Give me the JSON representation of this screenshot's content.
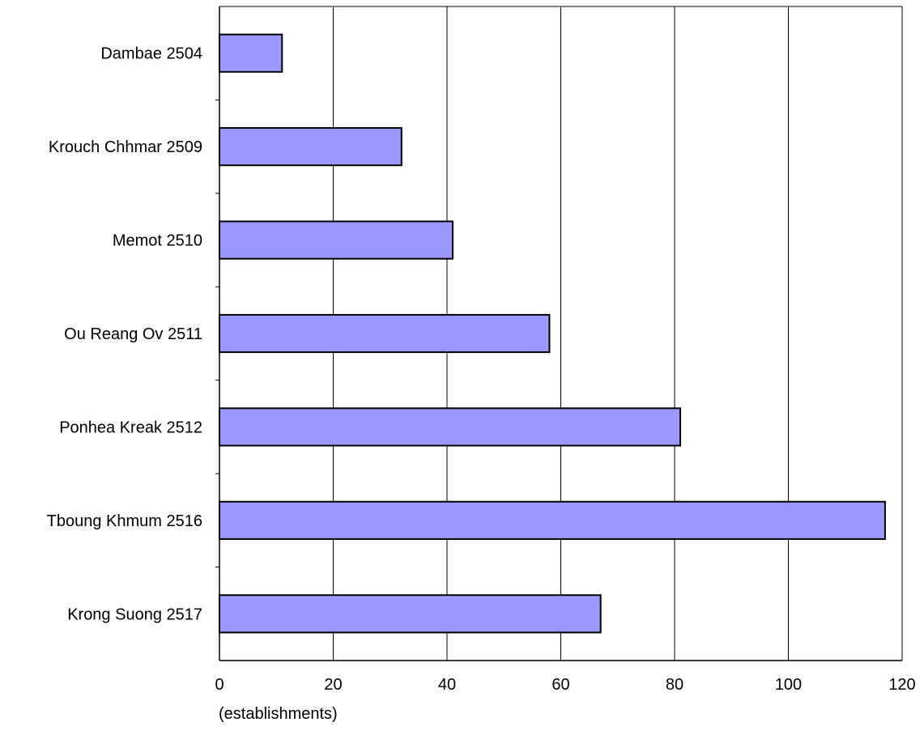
{
  "chart_data": {
    "type": "bar",
    "orientation": "horizontal",
    "categories": [
      "Dambae 2504",
      "Krouch Chhmar 2509",
      "Memot 2510",
      "Ou Reang Ov 2511",
      "Ponhea Kreak 2512",
      "Tboung Khmum 2516",
      "Krong Suong 2517"
    ],
    "values": [
      11,
      32,
      41,
      58,
      81,
      117,
      67
    ],
    "xlim": [
      0,
      120
    ],
    "xticks": [
      0,
      20,
      40,
      60,
      80,
      100,
      120
    ],
    "xlabel": "(establishments)",
    "title": "",
    "grid": "vertical",
    "colors": {
      "bar_fill": "#9999ff",
      "bar_stroke": "#000000",
      "grid": "#000000"
    }
  }
}
